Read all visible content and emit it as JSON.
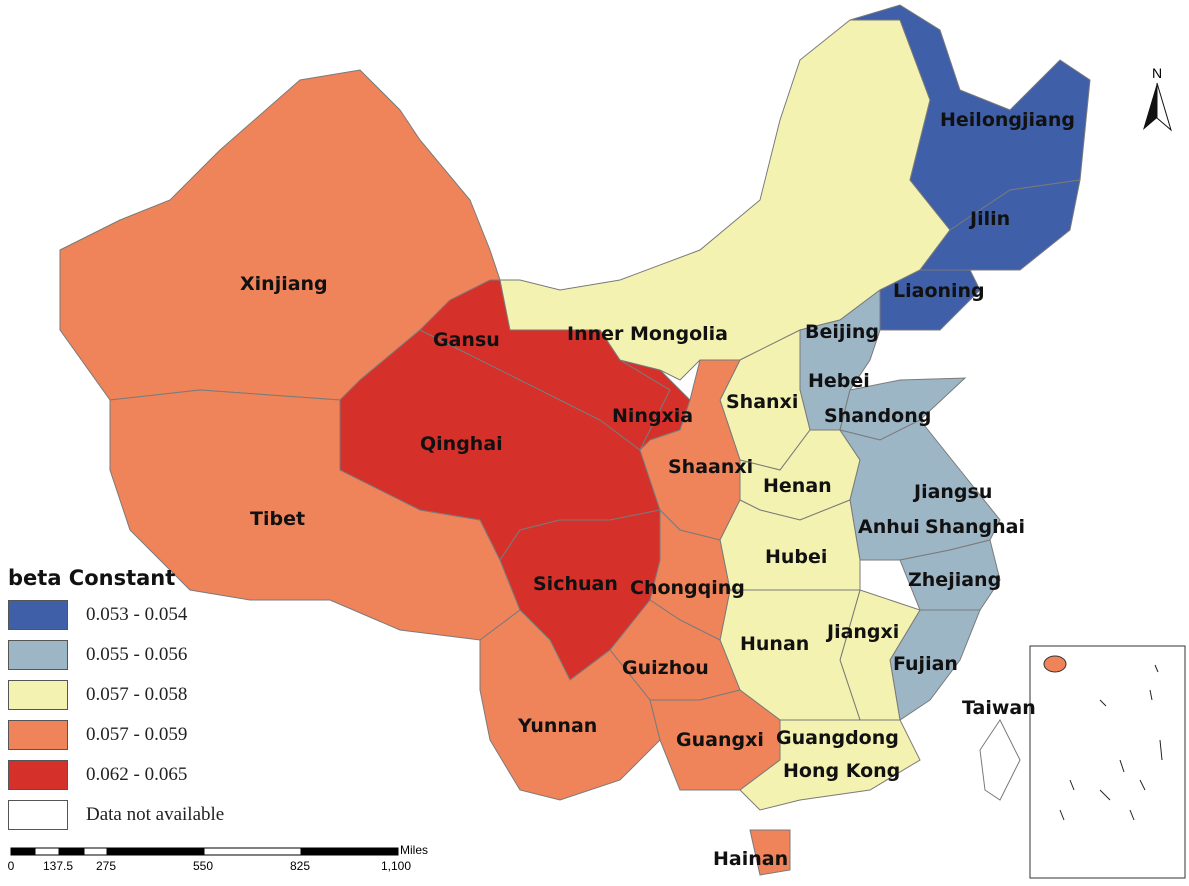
{
  "legend": {
    "title": "beta Constant",
    "classes": [
      {
        "label": "0.053 - 0.054",
        "color": "#3f5fa8"
      },
      {
        "label": "0.055 - 0.056",
        "color": "#9db6c6"
      },
      {
        "label": "0.057 - 0.058",
        "color": "#f3f2b0"
      },
      {
        "label": "0.057 - 0.059",
        "color": "#ef845a"
      },
      {
        "label": "0.062 - 0.065",
        "color": "#d6302a"
      },
      {
        "label": "Data not available",
        "color": "#ffffff"
      }
    ]
  },
  "north_arrow": {
    "label": "N"
  },
  "scale_bar": {
    "unit": "Miles",
    "ticks": [
      "0",
      "137.5",
      "275",
      "550",
      "825",
      "1,100"
    ]
  },
  "provinces": {
    "xinjiang": {
      "name": "Xinjiang",
      "class": 3
    },
    "tibet": {
      "name": "Tibet",
      "class": 3
    },
    "qinghai": {
      "name": "Qinghai",
      "class": 4
    },
    "gansu": {
      "name": "Gansu",
      "class": 4
    },
    "ningxia": {
      "name": "Ningxia",
      "class": 4
    },
    "inner_mongolia": {
      "name": "Inner Mongolia",
      "class": 2
    },
    "heilongjiang": {
      "name": "Heilongjiang",
      "class": 0
    },
    "jilin": {
      "name": "Jilin",
      "class": 0
    },
    "liaoning": {
      "name": "Liaoning",
      "class": 0
    },
    "beijing": {
      "name": "Beijing",
      "class": 1
    },
    "hebei": {
      "name": "Hebei",
      "class": 1
    },
    "shandong": {
      "name": "Shandong",
      "class": 1
    },
    "shanxi": {
      "name": "Shanxi",
      "class": 2
    },
    "shaanxi": {
      "name": "Shaanxi",
      "class": 3
    },
    "henan": {
      "name": "Henan",
      "class": 2
    },
    "jiangsu": {
      "name": "Jiangsu",
      "class": 1
    },
    "anhui": {
      "name": "Anhui",
      "class": 1
    },
    "shanghai": {
      "name": "Shanghai",
      "class": 1
    },
    "hubei": {
      "name": "Hubei",
      "class": 2
    },
    "zhejiang": {
      "name": "Zhejiang",
      "class": 1
    },
    "fujian": {
      "name": "Fujian",
      "class": 1
    },
    "jiangxi": {
      "name": "Jiangxi",
      "class": 2
    },
    "hunan": {
      "name": "Hunan",
      "class": 2
    },
    "chongqing": {
      "name": "Chongqing",
      "class": 3
    },
    "sichuan": {
      "name": "Sichuan",
      "class": 4
    },
    "guizhou": {
      "name": "Guizhou",
      "class": 3
    },
    "yunnan": {
      "name": "Yunnan",
      "class": 3
    },
    "guangxi": {
      "name": "Guangxi",
      "class": 3
    },
    "guangdong": {
      "name": "Guangdong",
      "class": 2
    },
    "hong_kong": {
      "name": "Hong Kong",
      "class": 2
    },
    "hainan": {
      "name": "Hainan",
      "class": 3
    },
    "taiwan": {
      "name": "Taiwan",
      "class": 5
    }
  }
}
